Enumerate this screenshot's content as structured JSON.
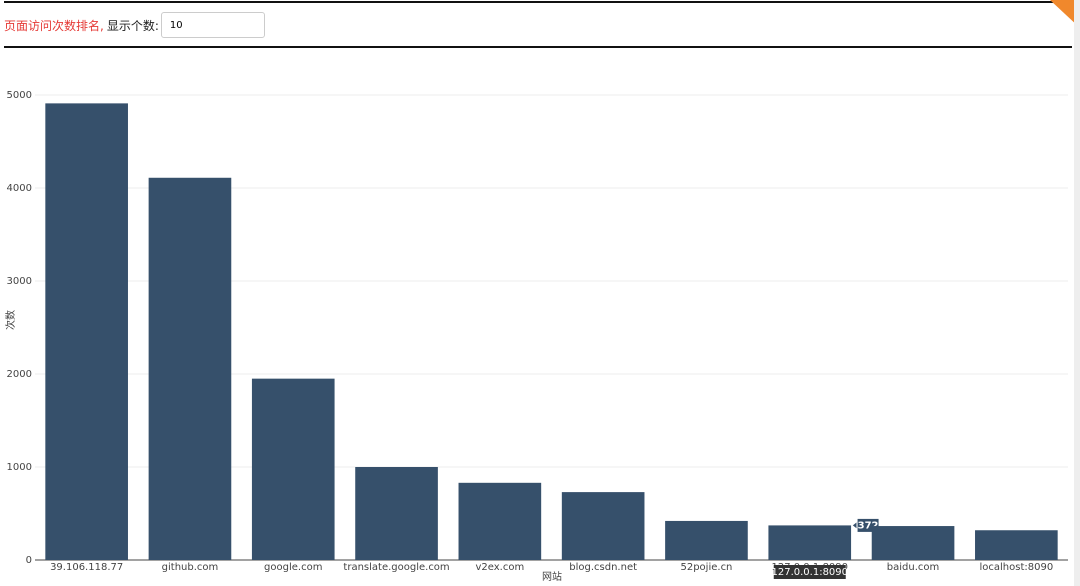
{
  "header": {
    "title": "页面访问次数排名,",
    "label": "显示个数:",
    "input": "10"
  },
  "chart_data": {
    "type": "bar",
    "x_label": "网站",
    "y_label": "次数",
    "categories": [
      "39.106.118.77",
      "github.com",
      "google.com",
      "translate.google.com",
      "v2ex.com",
      "blog.csdn.net",
      "52pojie.cn",
      "127.0.0.1:8090",
      "baidu.com",
      "localhost:8090"
    ],
    "values": [
      4910,
      4110,
      1950,
      1000,
      830,
      730,
      420,
      372,
      365,
      320
    ],
    "color": "#36506b",
    "ylim": [
      0,
      5000
    ],
    "yticks": [
      0,
      1000,
      2000,
      3000,
      4000,
      5000
    ],
    "grid": true,
    "hover": "127.0.0.1:8090"
  }
}
